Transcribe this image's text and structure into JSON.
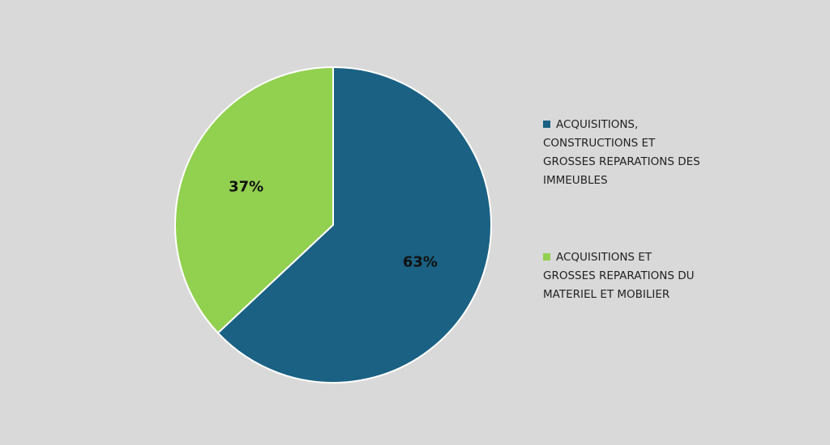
{
  "chart_data": {
    "type": "pie",
    "categories": [
      "ACQUISITIONS, CONSTRUCTIONS ET GROSSES REPARATIONS DES IMMEUBLES",
      "ACQUISITIONS ET GROSSES REPARATIONS DU MATERIEL ET MOBILIER"
    ],
    "values": [
      63,
      37
    ],
    "value_labels": [
      "63%",
      "37%"
    ],
    "colors": [
      "#1a6183",
      "#92d050"
    ]
  }
}
